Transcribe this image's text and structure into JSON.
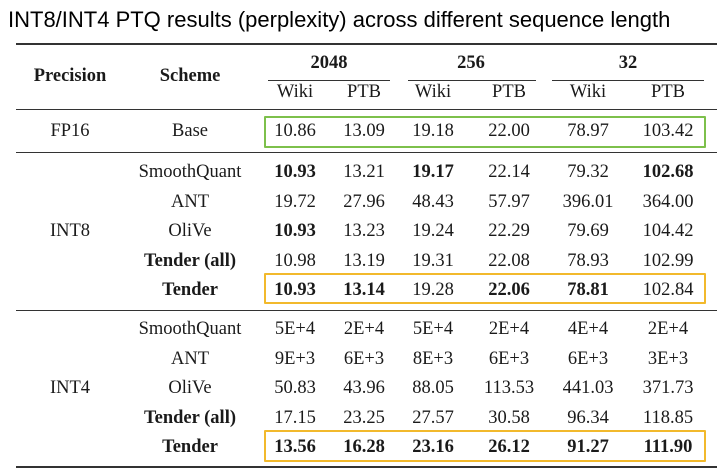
{
  "title": "INT8/INT4 PTQ results (perplexity) across different sequence length",
  "header": {
    "precision": "Precision",
    "scheme": "Scheme",
    "groups": [
      "2048",
      "256",
      "32"
    ],
    "subcols": [
      "Wiki",
      "PTB",
      "Wiki",
      "PTB",
      "Wiki",
      "PTB"
    ]
  },
  "sections": [
    {
      "precision": "FP16",
      "rows": [
        {
          "scheme": "Base",
          "scheme_bold": false,
          "values": [
            "10.86",
            "13.09",
            "19.18",
            "22.00",
            "78.97",
            "103.42"
          ],
          "bold": [
            false,
            false,
            false,
            false,
            false,
            false
          ]
        }
      ]
    },
    {
      "precision": "INT8",
      "rows": [
        {
          "scheme": "SmoothQuant",
          "scheme_bold": false,
          "values": [
            "10.93",
            "13.21",
            "19.17",
            "22.14",
            "79.32",
            "102.68"
          ],
          "bold": [
            true,
            false,
            true,
            false,
            false,
            true
          ]
        },
        {
          "scheme": "ANT",
          "scheme_bold": false,
          "values": [
            "19.72",
            "27.96",
            "48.43",
            "57.97",
            "396.01",
            "364.00"
          ],
          "bold": [
            false,
            false,
            false,
            false,
            false,
            false
          ]
        },
        {
          "scheme": "OliVe",
          "scheme_bold": false,
          "values": [
            "10.93",
            "13.23",
            "19.24",
            "22.29",
            "79.69",
            "104.42"
          ],
          "bold": [
            true,
            false,
            false,
            false,
            false,
            false
          ]
        },
        {
          "scheme": "Tender (all)",
          "scheme_bold": true,
          "values": [
            "10.98",
            "13.19",
            "19.31",
            "22.08",
            "78.93",
            "102.99"
          ],
          "bold": [
            false,
            false,
            false,
            false,
            false,
            false
          ]
        },
        {
          "scheme": "Tender",
          "scheme_bold": true,
          "values": [
            "10.93",
            "13.14",
            "19.28",
            "22.06",
            "78.81",
            "102.84"
          ],
          "bold": [
            true,
            true,
            false,
            true,
            true,
            false
          ]
        }
      ]
    },
    {
      "precision": "INT4",
      "rows": [
        {
          "scheme": "SmoothQuant",
          "scheme_bold": false,
          "values": [
            "5E+4",
            "2E+4",
            "5E+4",
            "2E+4",
            "4E+4",
            "2E+4"
          ],
          "bold": [
            false,
            false,
            false,
            false,
            false,
            false
          ]
        },
        {
          "scheme": "ANT",
          "scheme_bold": false,
          "values": [
            "9E+3",
            "6E+3",
            "8E+3",
            "6E+3",
            "6E+3",
            "3E+3"
          ],
          "bold": [
            false,
            false,
            false,
            false,
            false,
            false
          ]
        },
        {
          "scheme": "OliVe",
          "scheme_bold": false,
          "values": [
            "50.83",
            "43.96",
            "88.05",
            "113.53",
            "441.03",
            "371.73"
          ],
          "bold": [
            false,
            false,
            false,
            false,
            false,
            false
          ]
        },
        {
          "scheme": "Tender (all)",
          "scheme_bold": true,
          "values": [
            "17.15",
            "23.25",
            "27.57",
            "30.58",
            "96.34",
            "118.85"
          ],
          "bold": [
            false,
            false,
            false,
            false,
            false,
            false
          ]
        },
        {
          "scheme": "Tender",
          "scheme_bold": true,
          "values": [
            "13.56",
            "16.28",
            "23.16",
            "26.12",
            "91.27",
            "111.90"
          ],
          "bold": [
            true,
            true,
            true,
            true,
            true,
            true
          ]
        }
      ]
    }
  ],
  "highlights": [
    {
      "row": "FP16 Base",
      "color": "#7dc04b"
    },
    {
      "row": "INT8 Tender",
      "color": "#f2b92c"
    },
    {
      "row": "INT4 Tender",
      "color": "#f2b92c"
    }
  ]
}
